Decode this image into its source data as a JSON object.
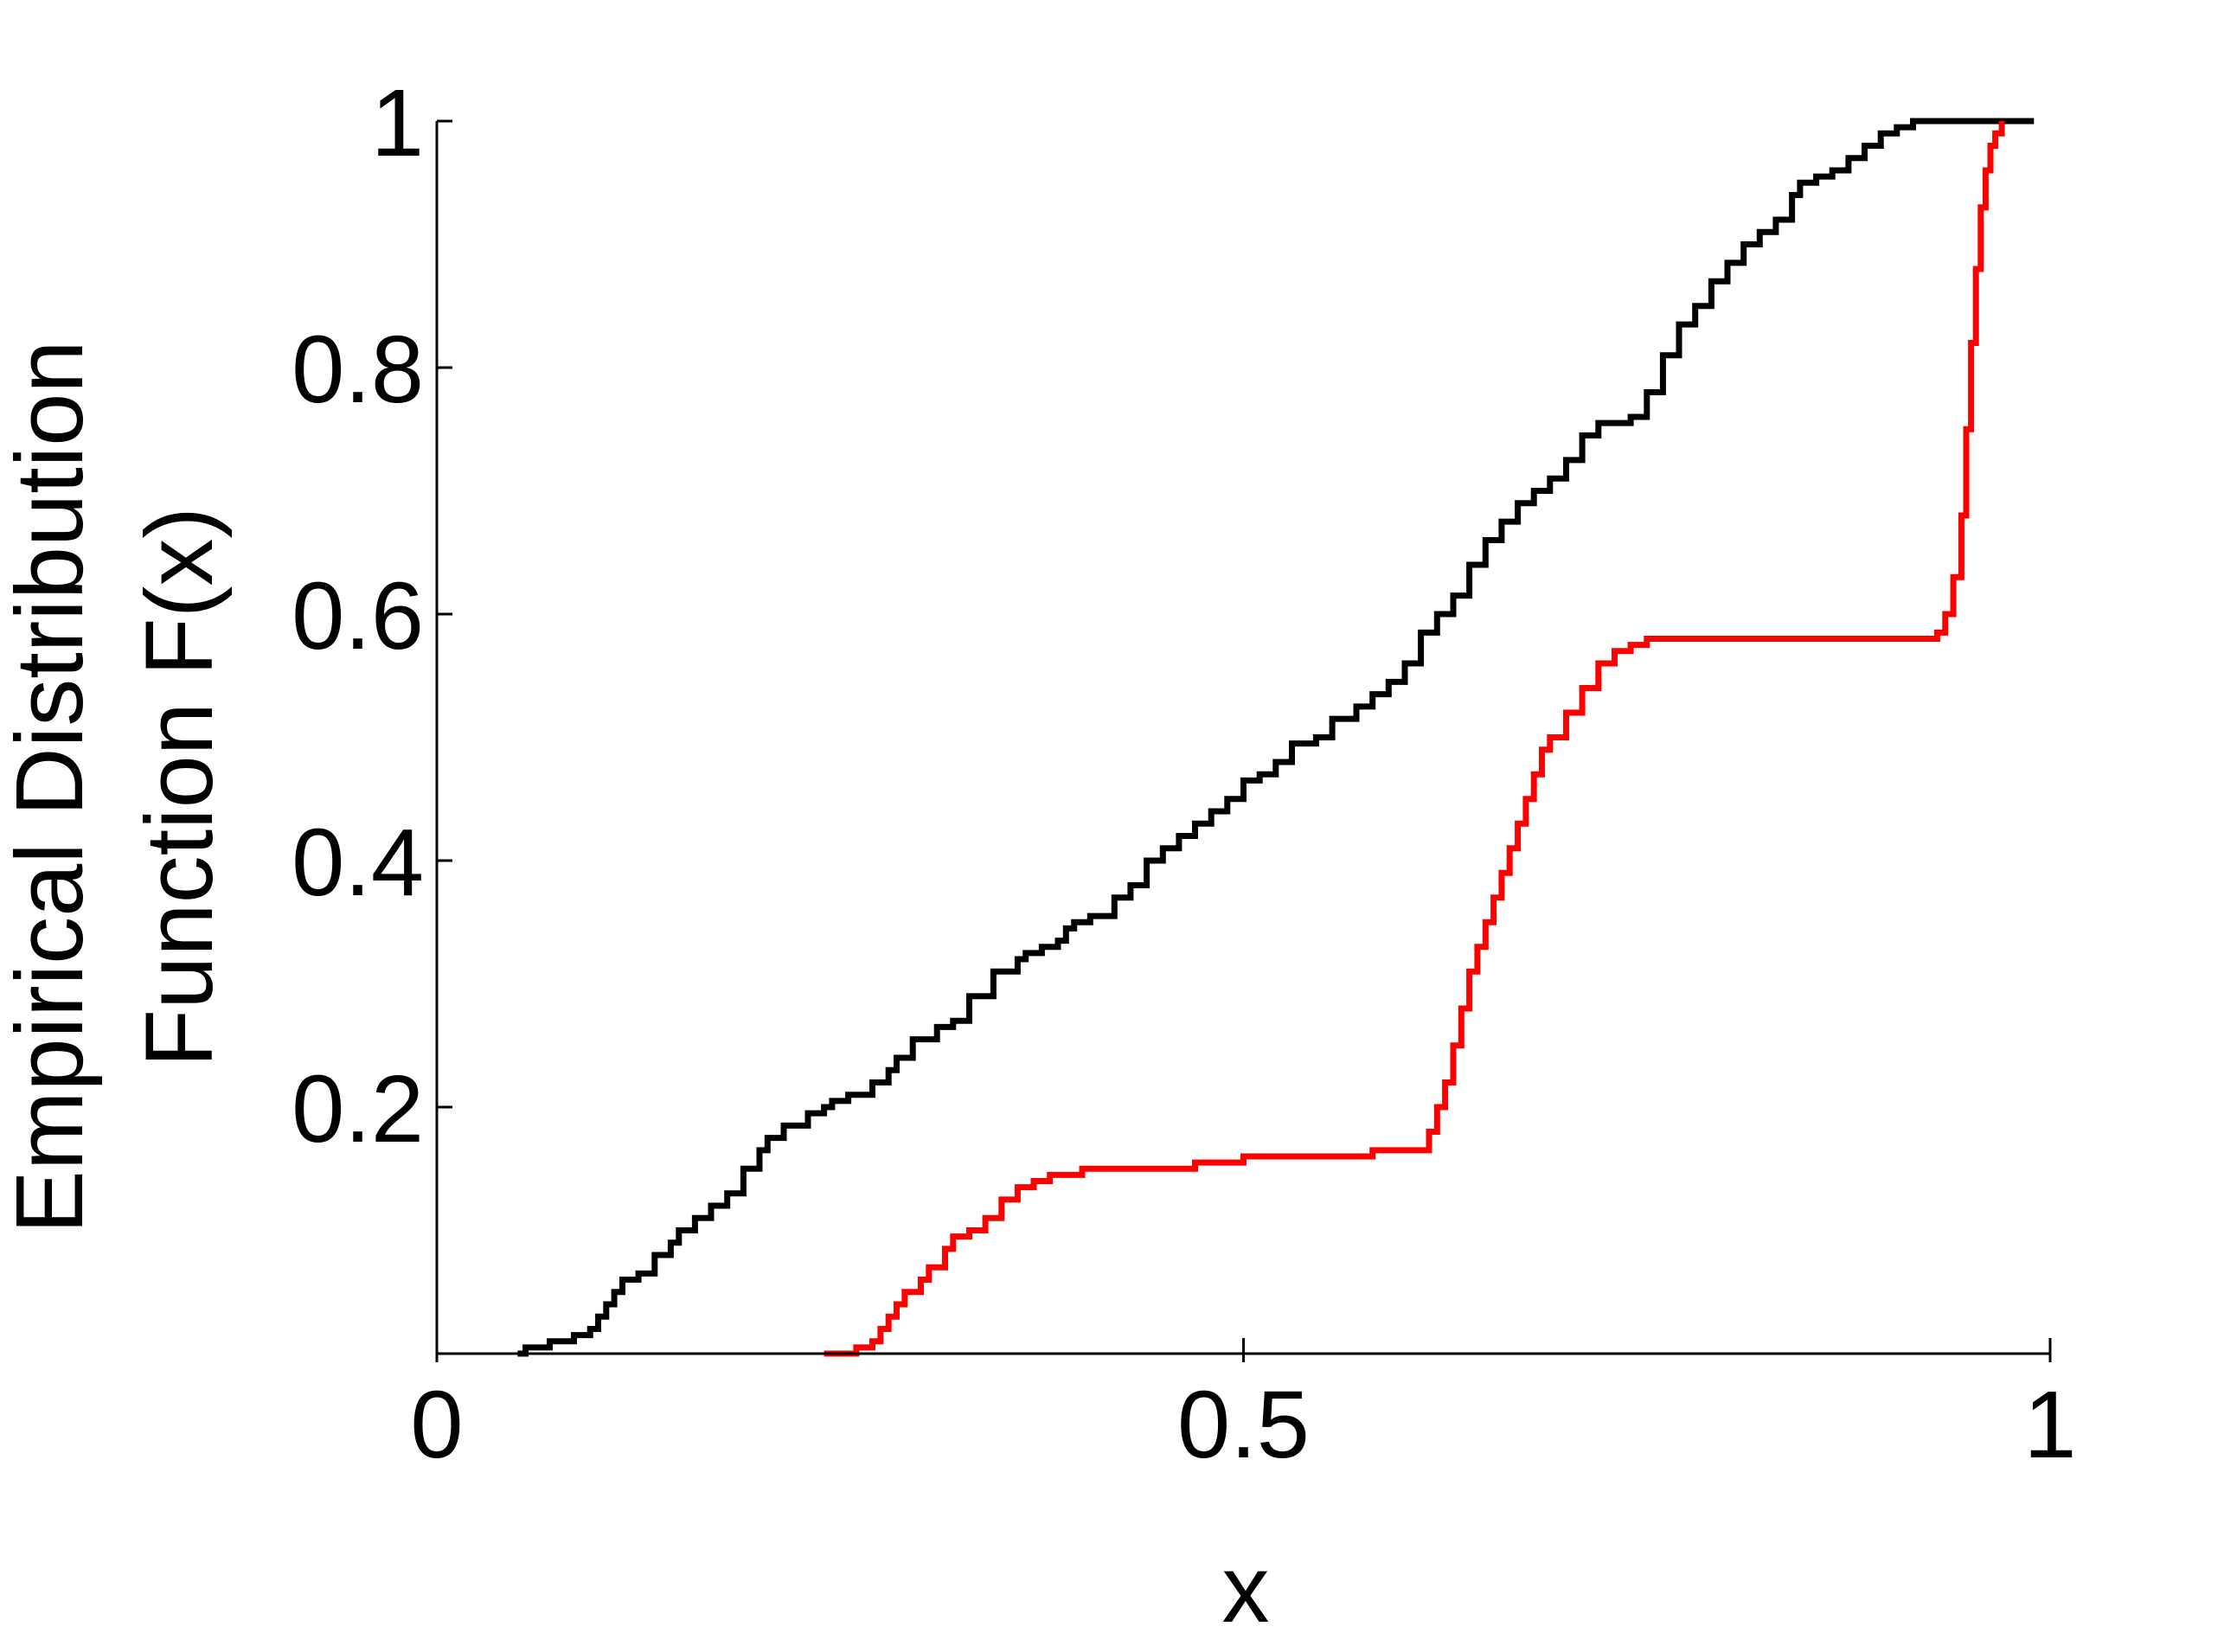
{
  "chart_data": {
    "type": "line",
    "title": "",
    "xlabel": "x",
    "ylabel_line1": "Empirical Distribution",
    "ylabel_line2": "Function F(x)",
    "xlim": [
      0,
      1
    ],
    "ylim": [
      0,
      1
    ],
    "xticks": [
      0,
      0.5,
      1
    ],
    "xtick_labels": [
      "0",
      "0.5",
      "1"
    ],
    "yticks": [
      0.2,
      0.4,
      0.6,
      0.8,
      1
    ],
    "ytick_labels": [
      "0.2",
      "0.4",
      "0.6",
      "0.8",
      "1"
    ],
    "grid": false,
    "legend": "none",
    "series": [
      {
        "color": "#000000",
        "step": true,
        "x": [
          0.05,
          0.055,
          0.07,
          0.085,
          0.095,
          0.1,
          0.105,
          0.11,
          0.115,
          0.125,
          0.135,
          0.145,
          0.15,
          0.16,
          0.17,
          0.18,
          0.19,
          0.2,
          0.205,
          0.215,
          0.23,
          0.24,
          0.245,
          0.255,
          0.27,
          0.28,
          0.285,
          0.295,
          0.31,
          0.32,
          0.33,
          0.345,
          0.36,
          0.365,
          0.375,
          0.385,
          0.39,
          0.395,
          0.405,
          0.42,
          0.43,
          0.44,
          0.45,
          0.46,
          0.47,
          0.48,
          0.49,
          0.5,
          0.51,
          0.52,
          0.53,
          0.545,
          0.555,
          0.57,
          0.58,
          0.59,
          0.6,
          0.61,
          0.62,
          0.63,
          0.64,
          0.65,
          0.66,
          0.67,
          0.68,
          0.69,
          0.7,
          0.71,
          0.72,
          0.73,
          0.74,
          0.75,
          0.76,
          0.77,
          0.78,
          0.79,
          0.8,
          0.81,
          0.82,
          0.83,
          0.84,
          0.845,
          0.855,
          0.865,
          0.875,
          0.885,
          0.895,
          0.905,
          0.915,
          0.925,
          0.935,
          0.945,
          0.955,
          0.965,
          0.975,
          0.985,
          0.99
        ],
        "y": [
          0.0,
          0.005,
          0.01,
          0.015,
          0.02,
          0.03,
          0.04,
          0.05,
          0.06,
          0.065,
          0.08,
          0.09,
          0.1,
          0.11,
          0.12,
          0.13,
          0.15,
          0.165,
          0.175,
          0.185,
          0.195,
          0.2,
          0.205,
          0.21,
          0.22,
          0.23,
          0.24,
          0.255,
          0.265,
          0.27,
          0.29,
          0.31,
          0.32,
          0.325,
          0.33,
          0.335,
          0.345,
          0.35,
          0.355,
          0.37,
          0.38,
          0.4,
          0.41,
          0.42,
          0.43,
          0.44,
          0.45,
          0.465,
          0.47,
          0.48,
          0.495,
          0.5,
          0.515,
          0.525,
          0.535,
          0.545,
          0.56,
          0.585,
          0.6,
          0.615,
          0.64,
          0.66,
          0.675,
          0.69,
          0.7,
          0.71,
          0.725,
          0.745,
          0.755,
          0.755,
          0.76,
          0.78,
          0.81,
          0.835,
          0.85,
          0.87,
          0.885,
          0.9,
          0.91,
          0.92,
          0.94,
          0.95,
          0.955,
          0.96,
          0.97,
          0.98,
          0.99,
          0.995,
          1.0,
          1.0,
          1.0,
          1.0,
          1.0,
          1.0,
          1.0,
          1.0,
          1.0
        ]
      },
      {
        "color": "#ff0000",
        "step": true,
        "x": [
          0.24,
          0.26,
          0.27,
          0.275,
          0.28,
          0.285,
          0.29,
          0.3,
          0.305,
          0.315,
          0.32,
          0.33,
          0.34,
          0.35,
          0.36,
          0.37,
          0.38,
          0.4,
          0.43,
          0.47,
          0.5,
          0.54,
          0.58,
          0.61,
          0.615,
          0.62,
          0.625,
          0.63,
          0.635,
          0.64,
          0.645,
          0.65,
          0.655,
          0.66,
          0.665,
          0.67,
          0.675,
          0.68,
          0.685,
          0.69,
          0.7,
          0.71,
          0.72,
          0.73,
          0.74,
          0.75,
          0.76,
          0.77,
          0.8,
          0.85,
          0.9,
          0.93,
          0.935,
          0.94,
          0.945,
          0.948,
          0.951,
          0.954,
          0.957,
          0.96,
          0.963,
          0.966,
          0.97
        ],
        "y": [
          0.0,
          0.005,
          0.01,
          0.02,
          0.03,
          0.04,
          0.05,
          0.06,
          0.07,
          0.085,
          0.095,
          0.1,
          0.11,
          0.125,
          0.135,
          0.14,
          0.145,
          0.15,
          0.15,
          0.155,
          0.16,
          0.16,
          0.165,
          0.165,
          0.18,
          0.2,
          0.22,
          0.25,
          0.28,
          0.31,
          0.33,
          0.35,
          0.37,
          0.39,
          0.41,
          0.43,
          0.45,
          0.47,
          0.49,
          0.5,
          0.52,
          0.54,
          0.56,
          0.57,
          0.575,
          0.58,
          0.58,
          0.58,
          0.58,
          0.58,
          0.58,
          0.585,
          0.6,
          0.63,
          0.68,
          0.75,
          0.82,
          0.88,
          0.93,
          0.96,
          0.98,
          0.99,
          1.0
        ]
      }
    ]
  }
}
